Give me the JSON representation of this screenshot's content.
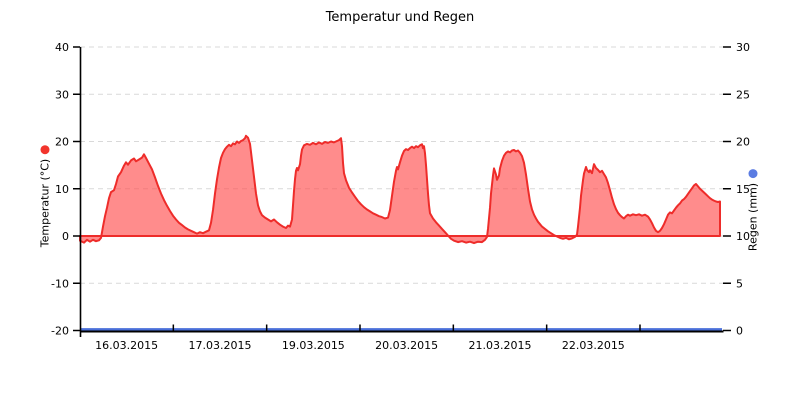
{
  "title": "Temperatur und Regen",
  "chart_data": {
    "type": "area",
    "title": "Temperatur und Regen",
    "grid": {
      "on": true,
      "dashed": true,
      "color": "#d9d9d9"
    },
    "x_axis": {
      "tick_labels": [
        "16.03.2015",
        "17.03.2015",
        "19.03.2015",
        "20.03.2015",
        "21.03.2015",
        "22.03.2015"
      ],
      "num_day_segments": 7,
      "range_days": [
        0,
        6.89
      ]
    },
    "y_left": {
      "label": "Temperatur (°C)",
      "min": -20,
      "max": 40,
      "ticks": [
        40,
        30,
        20,
        10,
        0,
        -10,
        -20
      ],
      "marker_color": "#f2342c"
    },
    "y_right": {
      "label": "Regen (mm)",
      "min": 0,
      "max": 30,
      "ticks": [
        30,
        25,
        20,
        15,
        10,
        5,
        0
      ],
      "marker_color": "#5b7ce2"
    },
    "series": [
      {
        "name": "Temperatur",
        "axis": "left",
        "draw": "area",
        "line_color": "#ee2c2a",
        "fill_color": "rgba(255,70,70,0.62)",
        "points": [
          [
            0.0,
            -1.0
          ],
          [
            0.043,
            -1.4
          ],
          [
            0.075,
            -0.8
          ],
          [
            0.107,
            -1.2
          ],
          [
            0.139,
            -0.8
          ],
          [
            0.171,
            -1.1
          ],
          [
            0.204,
            -0.9
          ],
          [
            0.225,
            -0.4
          ],
          [
            0.246,
            2.0
          ],
          [
            0.268,
            4.2
          ],
          [
            0.289,
            6.0
          ],
          [
            0.311,
            8.0
          ],
          [
            0.332,
            9.3
          ],
          [
            0.364,
            9.7
          ],
          [
            0.386,
            11.0
          ],
          [
            0.407,
            12.6
          ],
          [
            0.439,
            13.5
          ],
          [
            0.471,
            14.9
          ],
          [
            0.493,
            15.6
          ],
          [
            0.514,
            15.1
          ],
          [
            0.546,
            16.0
          ],
          [
            0.579,
            16.4
          ],
          [
            0.6,
            15.8
          ],
          [
            0.632,
            16.2
          ],
          [
            0.664,
            16.6
          ],
          [
            0.686,
            17.3
          ],
          [
            0.707,
            16.5
          ],
          [
            0.739,
            15.3
          ],
          [
            0.771,
            14.1
          ],
          [
            0.804,
            12.4
          ],
          [
            0.836,
            10.6
          ],
          [
            0.868,
            9.0
          ],
          [
            0.9,
            7.6
          ],
          [
            0.932,
            6.4
          ],
          [
            0.964,
            5.3
          ],
          [
            0.996,
            4.3
          ],
          [
            1.029,
            3.5
          ],
          [
            1.061,
            2.8
          ],
          [
            1.093,
            2.3
          ],
          [
            1.125,
            1.8
          ],
          [
            1.157,
            1.4
          ],
          [
            1.189,
            1.1
          ],
          [
            1.221,
            0.8
          ],
          [
            1.254,
            0.5
          ],
          [
            1.286,
            0.8
          ],
          [
            1.318,
            0.6
          ],
          [
            1.35,
            0.9
          ],
          [
            1.382,
            1.2
          ],
          [
            1.404,
            2.8
          ],
          [
            1.425,
            5.5
          ],
          [
            1.446,
            9.0
          ],
          [
            1.468,
            12.0
          ],
          [
            1.489,
            14.5
          ],
          [
            1.511,
            16.5
          ],
          [
            1.532,
            17.6
          ],
          [
            1.554,
            18.4
          ],
          [
            1.575,
            18.9
          ],
          [
            1.596,
            19.3
          ],
          [
            1.618,
            19.0
          ],
          [
            1.639,
            19.6
          ],
          [
            1.661,
            19.4
          ],
          [
            1.682,
            20.0
          ],
          [
            1.704,
            19.7
          ],
          [
            1.725,
            20.1
          ],
          [
            1.746,
            20.3
          ],
          [
            1.768,
            20.7
          ],
          [
            1.779,
            21.2
          ],
          [
            1.8,
            20.8
          ],
          [
            1.821,
            19.5
          ],
          [
            1.843,
            16.0
          ],
          [
            1.864,
            12.5
          ],
          [
            1.886,
            9.0
          ],
          [
            1.907,
            6.5
          ],
          [
            1.929,
            5.2
          ],
          [
            1.95,
            4.4
          ],
          [
            1.982,
            3.9
          ],
          [
            2.014,
            3.5
          ],
          [
            2.046,
            3.1
          ],
          [
            2.079,
            3.5
          ],
          [
            2.111,
            2.9
          ],
          [
            2.143,
            2.4
          ],
          [
            2.175,
            2.0
          ],
          [
            2.207,
            1.7
          ],
          [
            2.229,
            2.2
          ],
          [
            2.25,
            2.0
          ],
          [
            2.271,
            3.5
          ],
          [
            2.282,
            6.5
          ],
          [
            2.293,
            9.5
          ],
          [
            2.304,
            12.0
          ],
          [
            2.314,
            13.8
          ],
          [
            2.325,
            14.4
          ],
          [
            2.336,
            13.9
          ],
          [
            2.357,
            15.2
          ],
          [
            2.368,
            17.0
          ],
          [
            2.379,
            18.3
          ],
          [
            2.4,
            19.2
          ],
          [
            2.432,
            19.5
          ],
          [
            2.464,
            19.3
          ],
          [
            2.496,
            19.7
          ],
          [
            2.529,
            19.4
          ],
          [
            2.561,
            19.8
          ],
          [
            2.593,
            19.5
          ],
          [
            2.625,
            19.9
          ],
          [
            2.657,
            19.7
          ],
          [
            2.689,
            20.0
          ],
          [
            2.721,
            19.8
          ],
          [
            2.754,
            20.1
          ],
          [
            2.775,
            20.3
          ],
          [
            2.796,
            20.7
          ],
          [
            2.807,
            19.0
          ],
          [
            2.818,
            15.5
          ],
          [
            2.829,
            13.3
          ],
          [
            2.85,
            11.8
          ],
          [
            2.882,
            10.2
          ],
          [
            2.914,
            9.2
          ],
          [
            2.946,
            8.3
          ],
          [
            2.979,
            7.4
          ],
          [
            3.011,
            6.7
          ],
          [
            3.043,
            6.1
          ],
          [
            3.075,
            5.6
          ],
          [
            3.107,
            5.2
          ],
          [
            3.139,
            4.8
          ],
          [
            3.171,
            4.5
          ],
          [
            3.204,
            4.2
          ],
          [
            3.236,
            4.0
          ],
          [
            3.268,
            3.7
          ],
          [
            3.3,
            3.9
          ],
          [
            3.321,
            5.5
          ],
          [
            3.343,
            8.5
          ],
          [
            3.364,
            11.5
          ],
          [
            3.386,
            13.8
          ],
          [
            3.396,
            14.6
          ],
          [
            3.407,
            14.1
          ],
          [
            3.429,
            15.6
          ],
          [
            3.45,
            17.0
          ],
          [
            3.471,
            18.0
          ],
          [
            3.493,
            18.4
          ],
          [
            3.514,
            18.2
          ],
          [
            3.536,
            18.6
          ],
          [
            3.557,
            18.9
          ],
          [
            3.579,
            18.6
          ],
          [
            3.6,
            19.0
          ],
          [
            3.621,
            18.8
          ],
          [
            3.643,
            19.2
          ],
          [
            3.664,
            19.4
          ],
          [
            3.675,
            18.6
          ],
          [
            3.686,
            19.0
          ],
          [
            3.696,
            17.5
          ],
          [
            3.707,
            15.0
          ],
          [
            3.718,
            12.0
          ],
          [
            3.729,
            9.0
          ],
          [
            3.739,
            6.5
          ],
          [
            3.75,
            4.8
          ],
          [
            3.782,
            3.7
          ],
          [
            3.814,
            2.9
          ],
          [
            3.846,
            2.2
          ],
          [
            3.879,
            1.5
          ],
          [
            3.911,
            0.8
          ],
          [
            3.943,
            0.1
          ],
          [
            3.975,
            -0.6
          ],
          [
            4.007,
            -1.0
          ],
          [
            4.05,
            -1.3
          ],
          [
            4.093,
            -1.1
          ],
          [
            4.136,
            -1.4
          ],
          [
            4.179,
            -1.2
          ],
          [
            4.221,
            -1.5
          ],
          [
            4.264,
            -1.2
          ],
          [
            4.307,
            -1.3
          ],
          [
            4.339,
            -0.8
          ],
          [
            4.361,
            -0.2
          ],
          [
            4.371,
            1.5
          ],
          [
            4.393,
            6.0
          ],
          [
            4.404,
            9.0
          ],
          [
            4.425,
            12.8
          ],
          [
            4.436,
            14.3
          ],
          [
            4.457,
            13.0
          ],
          [
            4.468,
            11.9
          ],
          [
            4.489,
            12.8
          ],
          [
            4.5,
            14.3
          ],
          [
            4.521,
            15.9
          ],
          [
            4.543,
            17.0
          ],
          [
            4.564,
            17.6
          ],
          [
            4.586,
            17.9
          ],
          [
            4.607,
            17.7
          ],
          [
            4.629,
            18.1
          ],
          [
            4.65,
            18.2
          ],
          [
            4.671,
            17.9
          ],
          [
            4.693,
            18.1
          ],
          [
            4.714,
            17.6
          ],
          [
            4.736,
            16.9
          ],
          [
            4.757,
            15.5
          ],
          [
            4.779,
            13.0
          ],
          [
            4.8,
            10.0
          ],
          [
            4.821,
            7.3
          ],
          [
            4.843,
            5.6
          ],
          [
            4.864,
            4.5
          ],
          [
            4.886,
            3.7
          ],
          [
            4.907,
            3.0
          ],
          [
            4.929,
            2.5
          ],
          [
            4.95,
            2.0
          ],
          [
            4.982,
            1.5
          ],
          [
            5.014,
            1.0
          ],
          [
            5.046,
            0.6
          ],
          [
            5.079,
            0.2
          ],
          [
            5.111,
            -0.1
          ],
          [
            5.143,
            -0.4
          ],
          [
            5.175,
            -0.6
          ],
          [
            5.207,
            -0.4
          ],
          [
            5.239,
            -0.7
          ],
          [
            5.271,
            -0.5
          ],
          [
            5.304,
            -0.2
          ],
          [
            5.325,
            0.3
          ],
          [
            5.336,
            2.0
          ],
          [
            5.357,
            6.0
          ],
          [
            5.368,
            8.5
          ],
          [
            5.389,
            11.8
          ],
          [
            5.4,
            13.2
          ],
          [
            5.421,
            14.6
          ],
          [
            5.432,
            14.0
          ],
          [
            5.454,
            13.5
          ],
          [
            5.464,
            13.9
          ],
          [
            5.486,
            13.3
          ],
          [
            5.507,
            15.2
          ],
          [
            5.529,
            14.4
          ],
          [
            5.55,
            14.0
          ],
          [
            5.571,
            13.5
          ],
          [
            5.593,
            13.8
          ],
          [
            5.614,
            13.1
          ],
          [
            5.636,
            12.4
          ],
          [
            5.657,
            11.2
          ],
          [
            5.679,
            9.7
          ],
          [
            5.7,
            8.1
          ],
          [
            5.721,
            6.7
          ],
          [
            5.743,
            5.7
          ],
          [
            5.764,
            4.9
          ],
          [
            5.786,
            4.4
          ],
          [
            5.807,
            4.0
          ],
          [
            5.829,
            3.7
          ],
          [
            5.85,
            4.2
          ],
          [
            5.871,
            4.5
          ],
          [
            5.893,
            4.3
          ],
          [
            5.925,
            4.6
          ],
          [
            5.957,
            4.4
          ],
          [
            5.989,
            4.6
          ],
          [
            6.021,
            4.3
          ],
          [
            6.054,
            4.5
          ],
          [
            6.086,
            4.1
          ],
          [
            6.107,
            3.5
          ],
          [
            6.129,
            2.7
          ],
          [
            6.15,
            1.8
          ],
          [
            6.171,
            1.1
          ],
          [
            6.193,
            0.8
          ],
          [
            6.214,
            1.1
          ],
          [
            6.236,
            1.7
          ],
          [
            6.257,
            2.5
          ],
          [
            6.279,
            3.5
          ],
          [
            6.3,
            4.5
          ],
          [
            6.321,
            5.0
          ],
          [
            6.343,
            4.8
          ],
          [
            6.364,
            5.4
          ],
          [
            6.386,
            6.0
          ],
          [
            6.407,
            6.5
          ],
          [
            6.429,
            6.9
          ],
          [
            6.45,
            7.5
          ],
          [
            6.471,
            7.8
          ],
          [
            6.493,
            8.3
          ],
          [
            6.514,
            8.9
          ],
          [
            6.536,
            9.5
          ],
          [
            6.557,
            10.1
          ],
          [
            6.579,
            10.7
          ],
          [
            6.6,
            11.0
          ],
          [
            6.621,
            10.5
          ],
          [
            6.643,
            10.0
          ],
          [
            6.664,
            9.6
          ],
          [
            6.686,
            9.2
          ],
          [
            6.707,
            8.8
          ],
          [
            6.729,
            8.4
          ],
          [
            6.75,
            8.0
          ],
          [
            6.771,
            7.7
          ],
          [
            6.793,
            7.5
          ],
          [
            6.814,
            7.3
          ],
          [
            6.836,
            7.2
          ],
          [
            6.857,
            7.3
          ]
        ]
      },
      {
        "name": "Regen",
        "axis": "right",
        "draw": "line",
        "line_color": "#4a6fd9",
        "points": [
          [
            0.0,
            0
          ],
          [
            6.879,
            0
          ]
        ]
      }
    ]
  }
}
